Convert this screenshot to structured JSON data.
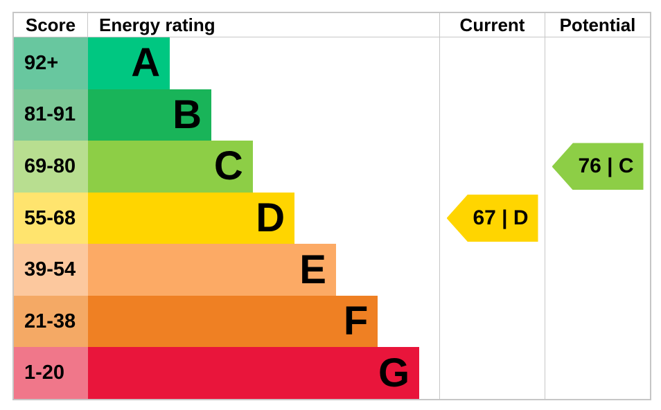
{
  "header": {
    "score": "Score",
    "energy_rating": "Energy rating",
    "current": "Current",
    "potential": "Potential"
  },
  "chart_data": {
    "type": "bar",
    "subtype": "epc-energy-rating",
    "orientation": "horizontal",
    "legend": "none",
    "grid": "off",
    "bands": [
      {
        "grade": "A",
        "score_range": "92+",
        "band_color": "#00c781",
        "score_cell_color": "#68c79f",
        "bar_fraction": 0.233
      },
      {
        "grade": "B",
        "score_range": "81-91",
        "band_color": "#19b459",
        "score_cell_color": "#7cc897",
        "bar_fraction": 0.351
      },
      {
        "grade": "C",
        "score_range": "69-80",
        "band_color": "#8dce46",
        "score_cell_color": "#b8de90",
        "bar_fraction": 0.469
      },
      {
        "grade": "D",
        "score_range": "55-68",
        "band_color": "#ffd500",
        "score_cell_color": "#ffe46e",
        "bar_fraction": 0.588
      },
      {
        "grade": "E",
        "score_range": "39-54",
        "band_color": "#fcaa65",
        "score_cell_color": "#fcc89e",
        "bar_fraction": 0.706
      },
      {
        "grade": "F",
        "score_range": "21-38",
        "band_color": "#ef8023",
        "score_cell_color": "#f4a965",
        "bar_fraction": 0.825
      },
      {
        "grade": "G",
        "score_range": "1-20",
        "band_color": "#e9153b",
        "score_cell_color": "#f0778a",
        "bar_fraction": 0.943
      }
    ],
    "current": {
      "value": 67,
      "grade": "D",
      "label": "67 | D",
      "arrow_color": "#ffd500",
      "band_index": 3
    },
    "potential": {
      "value": 76,
      "grade": "C",
      "label": "76 | C",
      "arrow_color": "#8dce46",
      "band_index": 2
    }
  },
  "colors": {
    "grid_line": "#c6c6c6",
    "text": "#000000",
    "background": "#ffffff"
  }
}
